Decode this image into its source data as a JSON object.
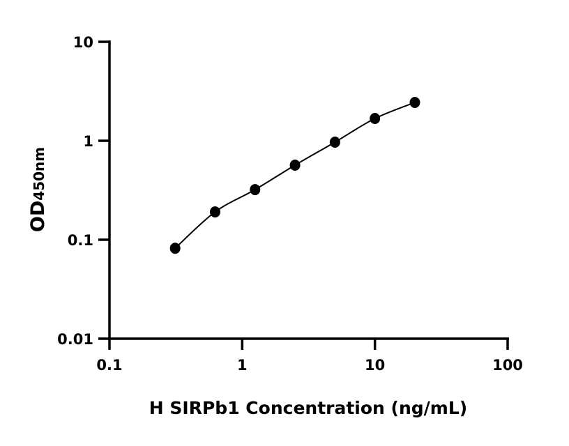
{
  "chart_data": {
    "type": "scatter",
    "title": "",
    "xlabel": "H SIRPb1 Concentration (ng/mL)",
    "ylabel_main": "OD",
    "ylabel_sub": "450nm",
    "x_scale": "log",
    "y_scale": "log",
    "xlim": [
      0.1,
      100
    ],
    "ylim": [
      0.01,
      10
    ],
    "x_ticks": [
      "0.1",
      "1",
      "10",
      "100"
    ],
    "y_ticks": [
      "0.01",
      "0.1",
      "1",
      "10"
    ],
    "grid": false,
    "legend": "none",
    "fit_curve": true,
    "marker_color": "#000000",
    "series": [
      {
        "x": [
          0.3125,
          0.625,
          1.25,
          2.5,
          5,
          10,
          20
        ],
        "y": [
          0.082,
          0.191,
          0.321,
          0.567,
          0.968,
          1.68,
          2.44
        ]
      }
    ]
  }
}
